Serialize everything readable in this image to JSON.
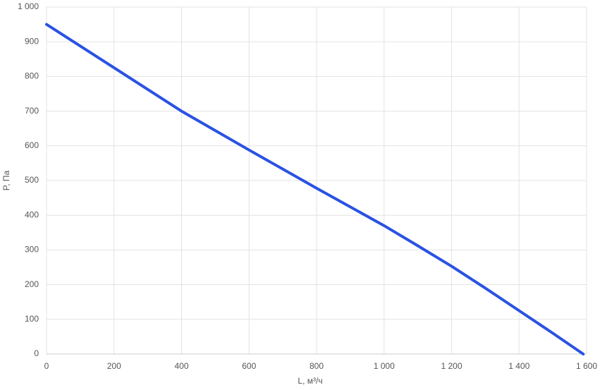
{
  "chart_data": {
    "type": "line",
    "x_label": "L, м³/ч",
    "y_label": "P, Па",
    "x": [
      0,
      200,
      400,
      600,
      800,
      1000,
      1100,
      1200,
      1300,
      1400,
      1500,
      1590
    ],
    "series": [
      {
        "color": "#2a52e3",
        "values": [
          950,
          825,
          700,
          588,
          478,
          370,
          312,
          253,
          190,
          125,
          60,
          0
        ]
      }
    ],
    "xlim": [
      0,
      1600
    ],
    "xticks": [
      0,
      200,
      400,
      600,
      800,
      {
        "value": 1000,
        "label": "1 000"
      },
      {
        "value": 1200,
        "label": "1 200"
      },
      {
        "value": 1400,
        "label": "1 400"
      },
      {
        "value": 1600,
        "label": "1 600"
      }
    ],
    "ylim": [
      0,
      1000
    ],
    "yticks": [
      0,
      100,
      200,
      300,
      400,
      500,
      600,
      700,
      800,
      900,
      {
        "value": 1000,
        "label": "1 000"
      }
    ],
    "grid": true
  }
}
